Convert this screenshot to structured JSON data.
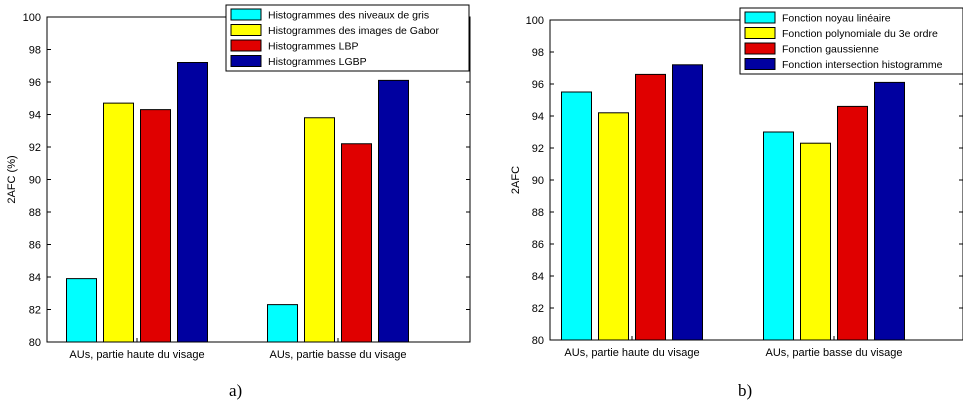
{
  "chart_data": [
    {
      "type": "bar",
      "panel_caption": "a)",
      "ylabel": "2AFC (%)",
      "xlabel": "",
      "ylim": [
        80,
        100
      ],
      "yticks": [
        80,
        82,
        84,
        86,
        88,
        90,
        92,
        94,
        96,
        98,
        100
      ],
      "categories": [
        "AUs, partie haute du visage",
        "AUs, partie basse du visage"
      ],
      "legend_position": "top-right",
      "grid": false,
      "series": [
        {
          "name": "Histogrammes des niveaux de gris",
          "color": "#00ffff",
          "values": [
            83.9,
            82.3
          ]
        },
        {
          "name": "Histogrammes des images de Gabor",
          "color": "#ffff00",
          "values": [
            94.7,
            93.8
          ]
        },
        {
          "name": "Histogrammes LBP",
          "color": "#e00000",
          "values": [
            94.3,
            92.2
          ]
        },
        {
          "name": "Histogrammes LGBP",
          "color": "#0000a0",
          "values": [
            97.2,
            96.1
          ]
        }
      ]
    },
    {
      "type": "bar",
      "panel_caption": "b)",
      "ylabel": "2AFC",
      "xlabel": "",
      "ylim": [
        80,
        100
      ],
      "yticks": [
        80,
        82,
        84,
        86,
        88,
        90,
        92,
        94,
        96,
        98,
        100
      ],
      "categories": [
        "AUs, partie haute du visage",
        "AUs, partie basse du visage"
      ],
      "legend_position": "top-right",
      "grid": false,
      "series": [
        {
          "name": "Fonction noyau linéaire",
          "color": "#00ffff",
          "values": [
            95.5,
            93.0
          ]
        },
        {
          "name": "Fonction polynomiale du 3e ordre",
          "color": "#ffff00",
          "values": [
            94.2,
            92.3
          ]
        },
        {
          "name": "Fonction gaussienne",
          "color": "#e00000",
          "values": [
            96.6,
            94.6
          ]
        },
        {
          "name": "Fonction intersection histogramme",
          "color": "#0000a0",
          "values": [
            97.2,
            96.1
          ]
        }
      ]
    }
  ]
}
